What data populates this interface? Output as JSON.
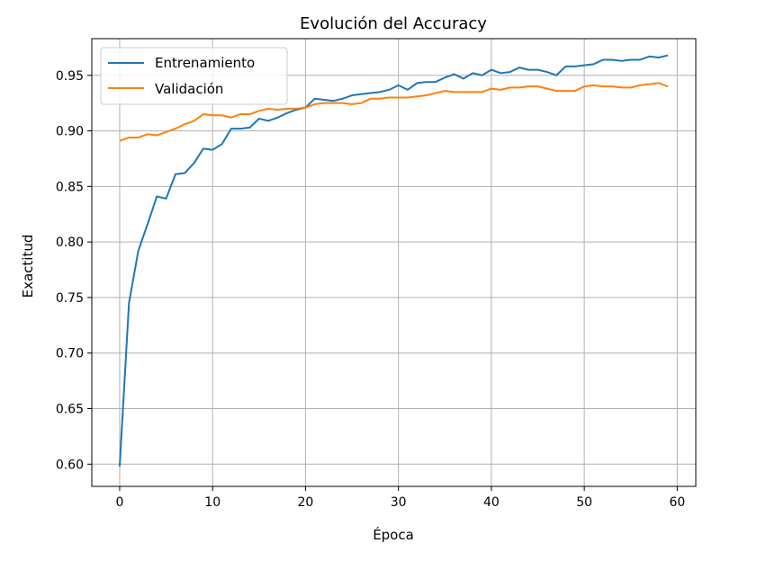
{
  "chart_data": {
    "type": "line",
    "title": "Evolución del Accuracy",
    "xlabel": "Época",
    "ylabel": "Exactitud",
    "xlim": [
      -3,
      62
    ],
    "ylim": [
      0.58,
      0.983
    ],
    "xticks": [
      0,
      10,
      20,
      30,
      40,
      50,
      60
    ],
    "yticks": [
      0.6,
      0.65,
      0.7,
      0.75,
      0.8,
      0.85,
      0.9,
      0.95
    ],
    "grid": true,
    "legend_position": "top-left",
    "x": [
      0,
      1,
      2,
      3,
      4,
      5,
      6,
      7,
      8,
      9,
      10,
      11,
      12,
      13,
      14,
      15,
      16,
      17,
      18,
      19,
      20,
      21,
      22,
      23,
      24,
      25,
      26,
      27,
      28,
      29,
      30,
      31,
      32,
      33,
      34,
      35,
      36,
      37,
      38,
      39,
      40,
      41,
      42,
      43,
      44,
      45,
      46,
      47,
      48,
      49,
      50,
      51,
      52,
      53,
      54,
      55,
      56,
      57,
      58,
      59
    ],
    "series": [
      {
        "name": "Entrenamiento",
        "color": "#1f77b4",
        "values": [
          0.598,
          0.745,
          0.792,
          0.816,
          0.841,
          0.839,
          0.861,
          0.862,
          0.871,
          0.884,
          0.883,
          0.888,
          0.902,
          0.902,
          0.903,
          0.911,
          0.909,
          0.912,
          0.916,
          0.919,
          0.921,
          0.929,
          0.928,
          0.927,
          0.929,
          0.932,
          0.933,
          0.934,
          0.935,
          0.937,
          0.941,
          0.937,
          0.943,
          0.944,
          0.944,
          0.948,
          0.951,
          0.947,
          0.952,
          0.95,
          0.955,
          0.952,
          0.953,
          0.957,
          0.955,
          0.955,
          0.953,
          0.95,
          0.958,
          0.958,
          0.959,
          0.96,
          0.964,
          0.964,
          0.963,
          0.964,
          0.964,
          0.967,
          0.966,
          0.968
        ]
      },
      {
        "name": "Validación",
        "color": "#ff7f0e",
        "values": [
          0.891,
          0.894,
          0.894,
          0.897,
          0.896,
          0.899,
          0.902,
          0.906,
          0.909,
          0.915,
          0.914,
          0.914,
          0.912,
          0.915,
          0.915,
          0.918,
          0.92,
          0.919,
          0.92,
          0.92,
          0.921,
          0.924,
          0.925,
          0.925,
          0.925,
          0.924,
          0.925,
          0.929,
          0.929,
          0.93,
          0.93,
          0.93,
          0.931,
          0.932,
          0.934,
          0.936,
          0.935,
          0.935,
          0.935,
          0.935,
          0.938,
          0.937,
          0.939,
          0.939,
          0.94,
          0.94,
          0.938,
          0.936,
          0.936,
          0.936,
          0.94,
          0.941,
          0.94,
          0.94,
          0.939,
          0.939,
          0.941,
          0.942,
          0.943,
          0.94
        ]
      }
    ]
  }
}
